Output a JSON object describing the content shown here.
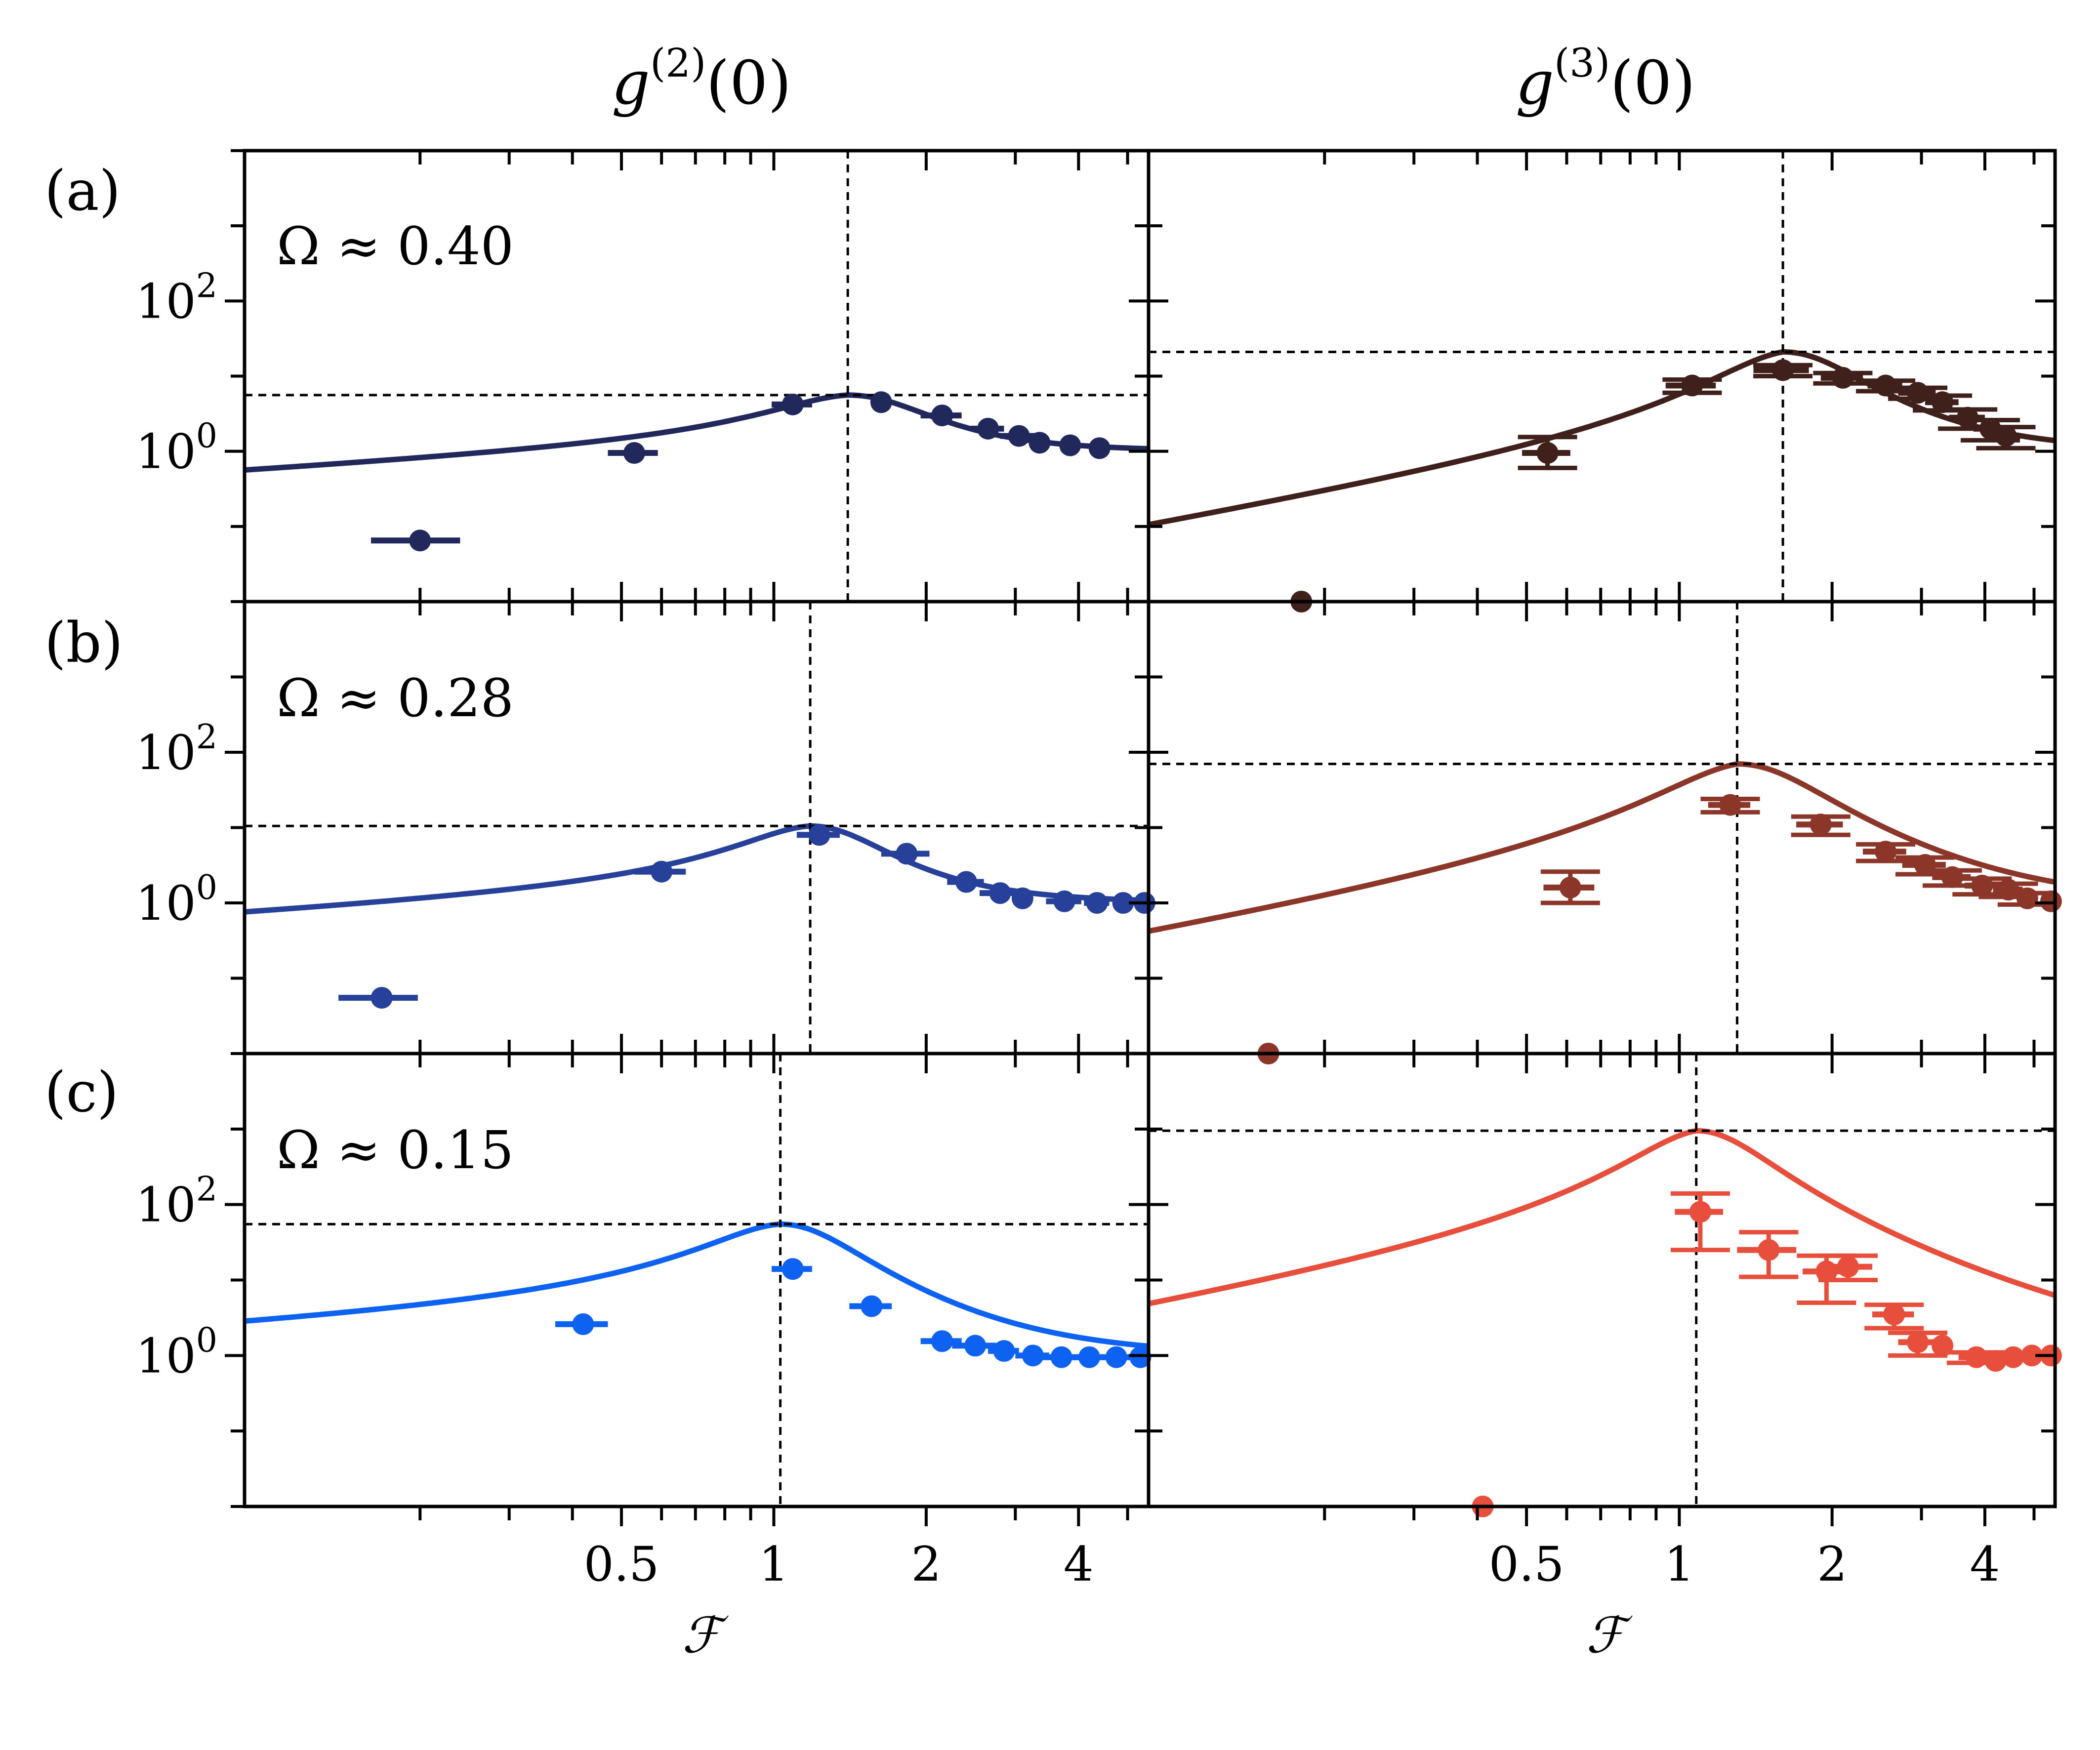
{
  "figure": {
    "column_titles": [
      "g(2)(0)",
      "g(3)(0)"
    ],
    "row_labels": [
      "(a)",
      "(b)",
      "(c)"
    ],
    "omega_labels": [
      "Ω ≈ 0.40",
      "Ω ≈ 0.28",
      "Ω ≈ 0.15"
    ]
  },
  "chart_data": [
    {
      "id": "a-g2",
      "type": "line+errorbar",
      "row": "(a)",
      "column": "g(2)(0)",
      "omega": 0.4,
      "color": "#21295c",
      "xscale": "log",
      "yscale": "log",
      "xlim": [
        0.09,
        5.5
      ],
      "ylim": [
        0.01,
        10000
      ],
      "xticks": [
        0.5,
        1,
        2,
        4
      ],
      "xticklabels": [
        "0.5",
        "1",
        "2",
        "4"
      ],
      "yticks": [
        1,
        100
      ],
      "yticklabels": [
        "10^0",
        "10^2"
      ],
      "xlabel": "ℱ",
      "ylabel": "",
      "fit": {
        "A": 5.6,
        "F0": 1.4,
        "w": 0.55,
        "exponent": 2
      },
      "peak_vline_x": 1.4,
      "peak_hline_y": 5.6,
      "points": [
        {
          "x": 0.2,
          "y": 0.065,
          "xerr": 0.04,
          "yerr": 0
        },
        {
          "x": 0.53,
          "y": 0.95,
          "xerr": 0.06,
          "yerr": 0
        },
        {
          "x": 1.09,
          "y": 4.2,
          "xerr": 0.1,
          "yerr": 0
        },
        {
          "x": 1.63,
          "y": 4.5,
          "xerr": 0,
          "yerr": 0
        },
        {
          "x": 2.15,
          "y": 3.0,
          "xerr": 0.2,
          "yerr": 0
        },
        {
          "x": 2.65,
          "y": 2.0,
          "xerr": 0.2,
          "yerr": 0
        },
        {
          "x": 3.05,
          "y": 1.6,
          "xerr": 0.25,
          "yerr": 0
        },
        {
          "x": 3.35,
          "y": 1.3,
          "xerr": 0.15,
          "yerr": 0
        },
        {
          "x": 3.85,
          "y": 1.2,
          "xerr": 0,
          "yerr": 0
        },
        {
          "x": 4.4,
          "y": 1.1,
          "xerr": 0,
          "yerr": 0
        }
      ]
    },
    {
      "id": "a-g3",
      "type": "line+errorbar",
      "row": "(a)",
      "column": "g(3)(0)",
      "omega": 0.4,
      "color": "#40201a",
      "xscale": "log",
      "yscale": "log",
      "xlim": [
        0.09,
        5.5
      ],
      "ylim": [
        0.01,
        10000
      ],
      "xticks": [
        0.5,
        1,
        2,
        4
      ],
      "xticklabels": [
        "0.5",
        "1",
        "2",
        "4"
      ],
      "yticks": [
        1,
        100
      ],
      "yticklabels": [
        "10^0",
        "10^2"
      ],
      "xlabel": "ℱ",
      "ylabel": "",
      "fit": {
        "A": 21,
        "F0": 1.6,
        "w": 0.55,
        "exponent": 3
      },
      "peak_vline_x": 1.6,
      "peak_hline_y": 21,
      "points": [
        {
          "x": 0.18,
          "y": 0.01,
          "xerr": 0,
          "yerr": 0
        },
        {
          "x": 0.55,
          "y": 0.95,
          "xerr": 0.06,
          "yerr": [
            0.35,
            0.6
          ]
        },
        {
          "x": 1.06,
          "y": 7.5,
          "xerr": 0.12,
          "yerr": [
            1.5,
            1.5
          ]
        },
        {
          "x": 1.6,
          "y": 12,
          "xerr": 0.2,
          "yerr": [
            2,
            2
          ]
        },
        {
          "x": 2.1,
          "y": 9.5,
          "xerr": 0.2,
          "yerr": [
            1.5,
            1.5
          ]
        },
        {
          "x": 2.55,
          "y": 7.5,
          "xerr": 0.2,
          "yerr": [
            1.2,
            1.2
          ]
        },
        {
          "x": 2.95,
          "y": 6.0,
          "xerr": 0.25,
          "yerr": [
            1,
            1
          ]
        },
        {
          "x": 3.3,
          "y": 4.5,
          "xerr": 0.25,
          "yerr": [
            1,
            1
          ]
        },
        {
          "x": 3.7,
          "y": 2.8,
          "xerr": 0.3,
          "yerr": [
            0.8,
            0.8
          ]
        },
        {
          "x": 4.1,
          "y": 2.0,
          "xerr": 0.3,
          "yerr": [
            0.6,
            0.6
          ]
        },
        {
          "x": 4.4,
          "y": 1.6,
          "xerr": 0.3,
          "yerr": [
            0.5,
            0.5
          ]
        }
      ]
    },
    {
      "id": "b-g2",
      "type": "line+errorbar",
      "row": "(b)",
      "column": "g(2)(0)",
      "omega": 0.28,
      "color": "#27409a",
      "xscale": "log",
      "yscale": "log",
      "xlim": [
        0.09,
        5.5
      ],
      "ylim": [
        0.01,
        10000
      ],
      "xticks": [
        0.5,
        1,
        2,
        4
      ],
      "xticklabels": [
        "0.5",
        "1",
        "2",
        "4"
      ],
      "yticks": [
        1,
        100
      ],
      "yticklabels": [
        "10^0",
        "10^2"
      ],
      "xlabel": "ℱ",
      "ylabel": "",
      "fit": {
        "A": 10.5,
        "F0": 1.18,
        "w": 0.4,
        "exponent": 2
      },
      "peak_vline_x": 1.18,
      "peak_hline_y": 10.5,
      "points": [
        {
          "x": 0.168,
          "y": 0.055,
          "xerr": 0.03,
          "yerr": 0
        },
        {
          "x": 0.6,
          "y": 2.6,
          "xerr": 0.07,
          "yerr": 0
        },
        {
          "x": 1.23,
          "y": 8.0,
          "xerr": 0.12,
          "yerr": 0
        },
        {
          "x": 1.83,
          "y": 4.5,
          "xerr": 0.2,
          "yerr": 0
        },
        {
          "x": 2.4,
          "y": 1.9,
          "xerr": 0.2,
          "yerr": 0
        },
        {
          "x": 2.8,
          "y": 1.35,
          "xerr": 0.25,
          "yerr": 0
        },
        {
          "x": 3.1,
          "y": 1.15,
          "xerr": 0,
          "yerr": 0
        },
        {
          "x": 3.75,
          "y": 1.05,
          "xerr": 0.3,
          "yerr": 0
        },
        {
          "x": 4.35,
          "y": 1.0,
          "xerr": 0.25,
          "yerr": 0
        },
        {
          "x": 4.9,
          "y": 1.0,
          "xerr": 0.2,
          "yerr": 0
        },
        {
          "x": 5.4,
          "y": 1.0,
          "xerr": 0.2,
          "yerr": 0
        }
      ]
    },
    {
      "id": "b-g3",
      "type": "line+errorbar",
      "row": "(b)",
      "column": "g(3)(0)",
      "omega": 0.28,
      "color": "#8c3529",
      "xscale": "log",
      "yscale": "log",
      "xlim": [
        0.09,
        5.5
      ],
      "ylim": [
        0.01,
        10000
      ],
      "xticks": [
        0.5,
        1,
        2,
        4
      ],
      "xticklabels": [
        "0.5",
        "1",
        "2",
        "4"
      ],
      "yticks": [
        1,
        100
      ],
      "yticklabels": [
        "10^0",
        "10^2"
      ],
      "xlabel": "ℱ",
      "ylabel": "",
      "fit": {
        "A": 70,
        "F0": 1.3,
        "w": 0.48,
        "exponent": 3
      },
      "peak_vline_x": 1.3,
      "peak_hline_y": 70,
      "points": [
        {
          "x": 0.155,
          "y": 0.01,
          "xerr": 0,
          "yerr": 0
        },
        {
          "x": 0.61,
          "y": 1.6,
          "xerr": 0.07,
          "yerr": [
            0.6,
            1.0
          ]
        },
        {
          "x": 1.26,
          "y": 20,
          "xerr": 0.12,
          "yerr": [
            4,
            4
          ]
        },
        {
          "x": 1.9,
          "y": 11,
          "xerr": 0.2,
          "yerr": [
            3,
            3
          ]
        },
        {
          "x": 2.55,
          "y": 4.8,
          "xerr": 0.25,
          "yerr": [
            1.2,
            1.2
          ]
        },
        {
          "x": 3.05,
          "y": 3.2,
          "xerr": 0.3,
          "yerr": [
            0.8,
            0.8
          ]
        },
        {
          "x": 3.45,
          "y": 2.2,
          "xerr": 0.3,
          "yerr": [
            0.5,
            0.5
          ]
        },
        {
          "x": 3.95,
          "y": 1.7,
          "xerr": 0.3,
          "yerr": [
            0.4,
            0.4
          ]
        },
        {
          "x": 4.45,
          "y": 1.5,
          "xerr": 0.3,
          "yerr": [
            0.3,
            0.3
          ]
        },
        {
          "x": 4.85,
          "y": 1.15,
          "xerr": 0.2,
          "yerr": [
            0.2,
            0.2
          ]
        },
        {
          "x": 5.4,
          "y": 1.05,
          "xerr": 0,
          "yerr": 0
        }
      ]
    },
    {
      "id": "c-g2",
      "type": "line+errorbar",
      "row": "(c)",
      "column": "g(2)(0)",
      "omega": 0.15,
      "color": "#0d62f2",
      "xscale": "log",
      "yscale": "log",
      "xlim": [
        0.09,
        5.5
      ],
      "ylim": [
        0.01,
        10000
      ],
      "xticks": [
        0.5,
        1,
        2,
        4
      ],
      "xticklabels": [
        "0.5",
        "1",
        "2",
        "4"
      ],
      "yticks": [
        1,
        100
      ],
      "yticklabels": [
        "10^0",
        "10^2"
      ],
      "xlabel": "ℱ",
      "ylabel": "",
      "fit": {
        "A": 55,
        "F0": 1.03,
        "w": 0.35,
        "exponent": 2
      },
      "peak_vline_x": 1.03,
      "peak_hline_y": 55,
      "points": [
        {
          "x": 0.42,
          "y": 2.6,
          "xerr": 0.05,
          "yerr": 0
        },
        {
          "x": 1.09,
          "y": 14,
          "xerr": 0.1,
          "yerr": 0
        },
        {
          "x": 1.56,
          "y": 4.5,
          "xerr": 0.15,
          "yerr": 0
        },
        {
          "x": 2.15,
          "y": 1.55,
          "xerr": 0.2,
          "yerr": 0
        },
        {
          "x": 2.5,
          "y": 1.35,
          "xerr": 0.25,
          "yerr": 0
        },
        {
          "x": 2.85,
          "y": 1.15,
          "xerr": 0.2,
          "yerr": 0
        },
        {
          "x": 3.25,
          "y": 1.0,
          "xerr": 0.25,
          "yerr": 0
        },
        {
          "x": 3.7,
          "y": 0.95,
          "xerr": 0.3,
          "yerr": 0
        },
        {
          "x": 4.2,
          "y": 0.95,
          "xerr": 0.3,
          "yerr": 0
        },
        {
          "x": 4.75,
          "y": 0.95,
          "xerr": 0.3,
          "yerr": 0
        },
        {
          "x": 5.3,
          "y": 0.95,
          "xerr": 0.3,
          "yerr": 0
        }
      ]
    },
    {
      "id": "c-g3",
      "type": "line+errorbar",
      "row": "(c)",
      "column": "g(3)(0)",
      "omega": 0.15,
      "color": "#e84e3c",
      "xscale": "log",
      "yscale": "log",
      "xlim": [
        0.09,
        5.5
      ],
      "ylim": [
        0.01,
        10000
      ],
      "xticks": [
        0.5,
        1,
        2,
        4
      ],
      "xticklabels": [
        "0.5",
        "1",
        "2",
        "4"
      ],
      "yticks": [
        1,
        100
      ],
      "yticklabels": [
        "10^0",
        "10^2"
      ],
      "xlabel": "ℱ",
      "ylabel": "",
      "fit": {
        "A": 950,
        "F0": 1.08,
        "w": 0.33,
        "exponent": 3
      },
      "peak_vline_x": 1.08,
      "peak_hline_y": 950,
      "points": [
        {
          "x": 0.41,
          "y": 0.01,
          "xerr": 0,
          "yerr": 0
        },
        {
          "x": 1.1,
          "y": 80,
          "xerr": 0.12,
          "yerr": [
            55,
            60
          ]
        },
        {
          "x": 1.5,
          "y": 25,
          "xerr": 0.2,
          "yerr": [
            14,
            18
          ]
        },
        {
          "x": 1.95,
          "y": 13,
          "xerr": 0.2,
          "yerr": [
            8,
            8
          ]
        },
        {
          "x": 2.15,
          "y": 15,
          "xerr": 0.25,
          "yerr": [
            5,
            6
          ]
        },
        {
          "x": 2.65,
          "y": 3.5,
          "xerr": 0.25,
          "yerr": [
            1.2,
            1.2
          ]
        },
        {
          "x": 2.95,
          "y": 1.5,
          "xerr": 0.25,
          "yerr": [
            0.5,
            0.5
          ]
        },
        {
          "x": 3.3,
          "y": 1.35,
          "xerr": 0,
          "yerr": 0
        },
        {
          "x": 3.85,
          "y": 0.95,
          "xerr": 0.3,
          "yerr": [
            0.15,
            0.15
          ]
        },
        {
          "x": 4.2,
          "y": 0.85,
          "xerr": 0,
          "yerr": 0
        },
        {
          "x": 4.55,
          "y": 0.95,
          "xerr": 0.2,
          "yerr": 0
        },
        {
          "x": 4.95,
          "y": 1.0,
          "xerr": 0.2,
          "yerr": 0
        },
        {
          "x": 5.4,
          "y": 1.0,
          "xerr": 0.2,
          "yerr": 0
        }
      ]
    }
  ]
}
